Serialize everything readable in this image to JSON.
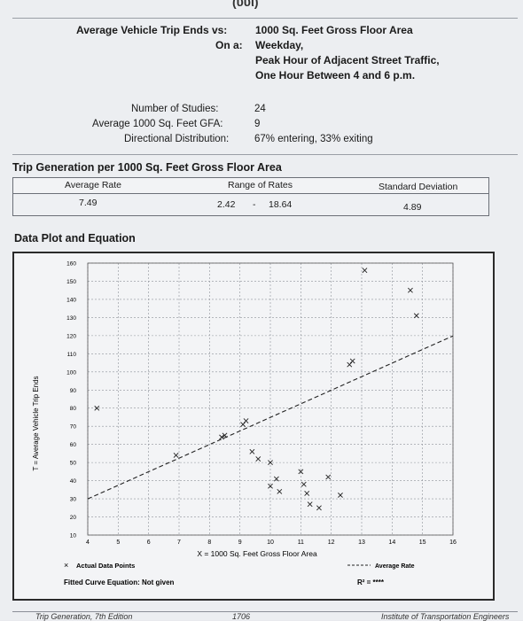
{
  "header": {
    "top_fragment": "(υυι)",
    "label_vs": "Average Vehicle Trip Ends vs:",
    "value_vs": "1000 Sq. Feet Gross Floor Area",
    "label_on": "On a:",
    "value_on_1": "Weekday,",
    "value_on_2": "Peak Hour of Adjacent Street Traffic,",
    "value_on_3": "One Hour Between 4 and 6 p.m."
  },
  "study": {
    "studies_label": "Number of Studies:",
    "studies_value": "24",
    "gfa_label": "Average 1000 Sq. Feet GFA:",
    "gfa_value": "9",
    "dist_label": "Directional Distribution:",
    "dist_value": "67% entering, 33% exiting"
  },
  "rates": {
    "title": "Trip Generation per 1000 Sq. Feet Gross Floor Area",
    "avg_rate_label": "Average Rate",
    "range_label": "Range of Rates",
    "sd_label": "Standard Deviation",
    "avg_rate_value": "7.49",
    "range_low": "2.42",
    "range_sep": "-",
    "range_high": "18.64",
    "sd_value": "4.89"
  },
  "plot_section_title": "Data Plot and Equation",
  "chart_data": {
    "type": "scatter",
    "xlabel": "X = 1000 Sq. Feet Gross Floor Area",
    "ylabel": "T = Average Vehicle Trip Ends",
    "xlim": [
      4,
      16
    ],
    "ylim": [
      0,
      160
    ],
    "xticks": [
      "4",
      "5",
      "6",
      "7",
      "8",
      "9",
      "10",
      "11",
      "12",
      "13",
      "14",
      "15",
      "16"
    ],
    "yticks": [
      "10",
      "20",
      "30",
      "40",
      "50",
      "60",
      "70",
      "80",
      "90",
      "100",
      "110",
      "120",
      "130",
      "140",
      "150",
      "160"
    ],
    "grid": true,
    "points": [
      [
        4.3,
        80
      ],
      [
        6.9,
        54
      ],
      [
        8.4,
        64
      ],
      [
        8.5,
        65
      ],
      [
        9.1,
        71
      ],
      [
        9.2,
        73
      ],
      [
        9.4,
        56
      ],
      [
        9.6,
        52
      ],
      [
        10.0,
        50
      ],
      [
        10.2,
        41
      ],
      [
        10.3,
        34
      ],
      [
        10.0,
        37
      ],
      [
        11.0,
        45
      ],
      [
        11.1,
        38
      ],
      [
        11.2,
        33
      ],
      [
        11.3,
        27
      ],
      [
        11.6,
        25
      ],
      [
        11.9,
        42
      ],
      [
        12.3,
        32
      ],
      [
        12.6,
        104
      ],
      [
        12.7,
        106
      ],
      [
        13.1,
        156
      ],
      [
        14.6,
        145
      ],
      [
        14.8,
        131
      ]
    ],
    "average_rate_line": {
      "slope": 7.49
    },
    "legend": {
      "actual_points": "Actual Data Points",
      "average_rate": "Average Rate"
    },
    "fitted_curve_label": "Fitted Curve Equation: Not given",
    "r2_label": "R² = ****"
  },
  "footer": {
    "left": "Trip Generation, 7th Edition",
    "center": "1706",
    "right": "Institute of Transportation Engineers"
  }
}
